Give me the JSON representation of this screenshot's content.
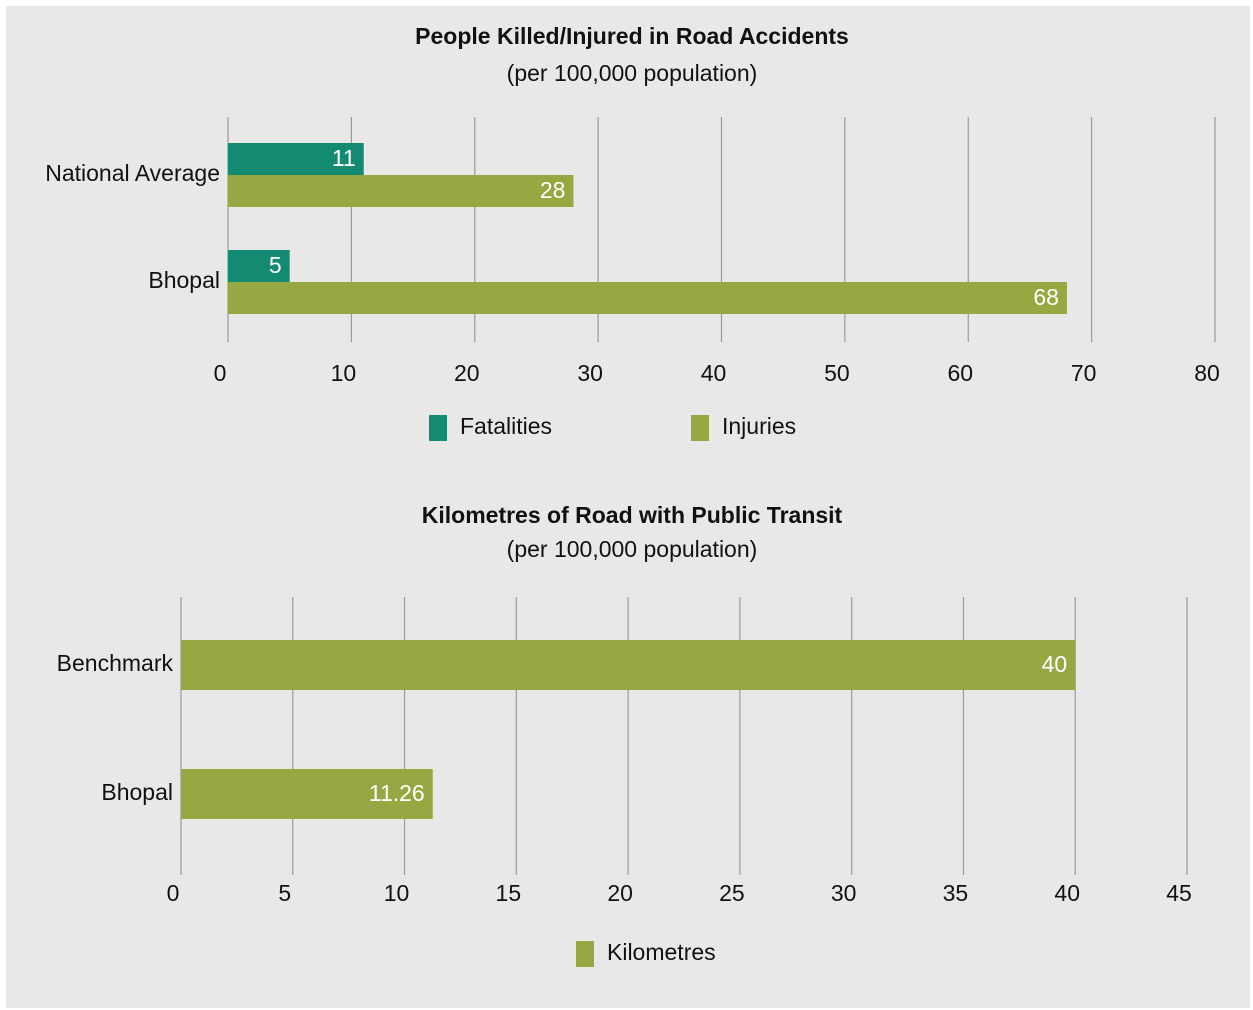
{
  "chart_data": [
    {
      "type": "bar",
      "orientation": "horizontal",
      "title": "People Killed/Injured in Road Accidents",
      "subtitle": "(per 100,000 population)",
      "categories": [
        "National Average",
        "Bhopal"
      ],
      "series": [
        {
          "name": "Fatalities",
          "color": "#138a72",
          "values": [
            11,
            5
          ]
        },
        {
          "name": "Injuries",
          "color": "#97a843",
          "values": [
            28,
            68
          ]
        }
      ],
      "xlim": [
        0,
        80
      ],
      "xticks": [
        0,
        10,
        20,
        30,
        40,
        50,
        60,
        70,
        80
      ],
      "grid": true,
      "legend": "bottom"
    },
    {
      "type": "bar",
      "orientation": "horizontal",
      "title": "Kilometres of Road with Public Transit",
      "subtitle": "(per 100,000 population)",
      "categories": [
        "Benchmark",
        "Bhopal"
      ],
      "series": [
        {
          "name": "Kilometres",
          "color": "#97a843",
          "values": [
            40,
            11.26
          ]
        }
      ],
      "xlim": [
        0,
        45
      ],
      "xticks": [
        0,
        5,
        10,
        15,
        20,
        25,
        30,
        35,
        40,
        45
      ],
      "grid": true,
      "legend": "bottom"
    }
  ]
}
